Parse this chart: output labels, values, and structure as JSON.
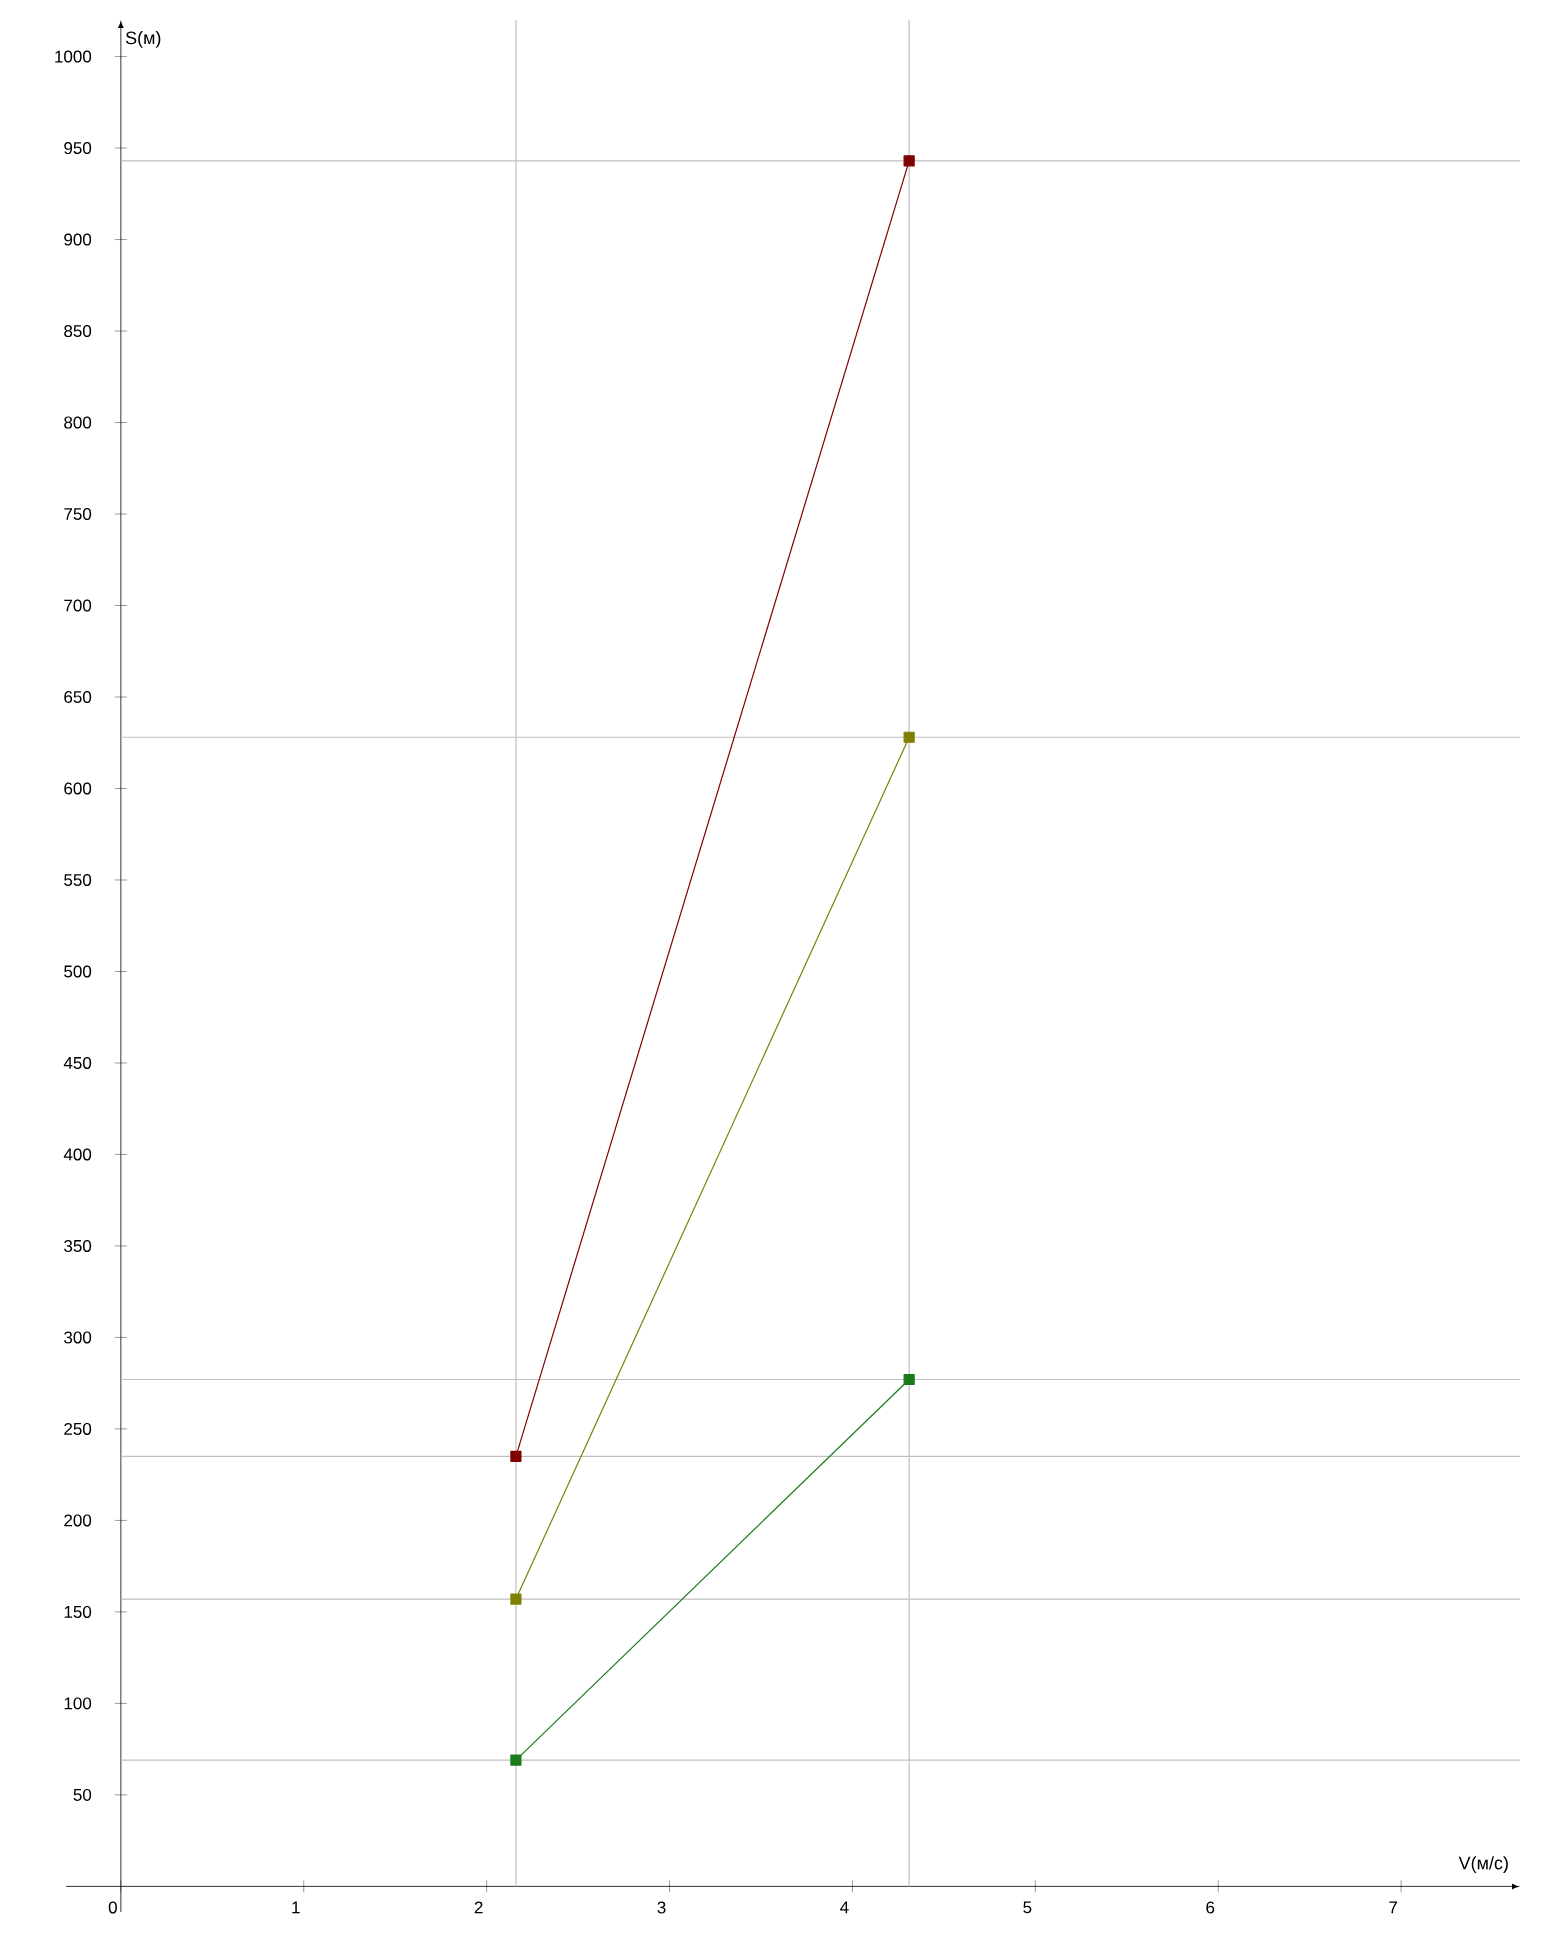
{
  "chart_data": {
    "type": "line",
    "xlabel": "V(м/с)",
    "ylabel": "S(м)",
    "xlim": [
      -0.3,
      7.65
    ],
    "ylim": [
      -14,
      1020
    ],
    "xticks": [
      0,
      1,
      2,
      3,
      4,
      5,
      6,
      7
    ],
    "yticks": [
      50,
      100,
      150,
      200,
      250,
      300,
      350,
      400,
      450,
      500,
      550,
      600,
      650,
      700,
      750,
      800,
      850,
      900,
      950,
      1000
    ],
    "x": [
      2.16,
      4.31
    ],
    "marker": "square",
    "line_style": "solid",
    "series": [
      {
        "color": "#800000",
        "values": [
          235,
          943
        ]
      },
      {
        "color": "#808000",
        "values": [
          157,
          628
        ]
      },
      {
        "color": "#1a7a1a",
        "values": [
          69,
          277
        ]
      }
    ],
    "ref_lines": [
      {
        "axis": "y",
        "value": 943,
        "color": "#c0c0c0"
      },
      {
        "axis": "y",
        "value": 628,
        "color": "#c0c0c0"
      },
      {
        "axis": "y",
        "value": 277,
        "color": "#c0c0c0"
      },
      {
        "axis": "y",
        "value": 235,
        "color": "#c0c0c0"
      },
      {
        "axis": "y",
        "value": 157,
        "color": "#c0c0c0"
      },
      {
        "axis": "y",
        "value": 69,
        "color": "#c0c0c0"
      },
      {
        "axis": "x",
        "value": 2.16,
        "color": "#c0c0c0"
      },
      {
        "axis": "x",
        "value": 4.31,
        "color": "#c0c0c0"
      }
    ]
  }
}
